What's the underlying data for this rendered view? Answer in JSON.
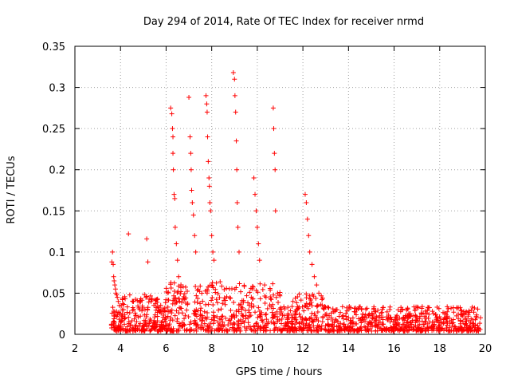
{
  "chart_data": {
    "type": "scatter",
    "title": "Day 294 of 2014, Rate Of TEC Index for receiver nrmd",
    "xlabel": "GPS time / hours",
    "ylabel": "ROTI / TECUs",
    "xlim": [
      2,
      20
    ],
    "ylim": [
      0,
      0.35
    ],
    "xticks": [
      "2",
      "4",
      "6",
      "8",
      "10",
      "12",
      "14",
      "16",
      "18",
      "20"
    ],
    "yticks": [
      "0",
      "0.05",
      "0.1",
      "0.15",
      "0.2",
      "0.25",
      "0.3",
      "0.35"
    ],
    "grid": true,
    "marker": "plus",
    "color": "#ff0000",
    "series": [
      {
        "x": [
          3.62,
          3.65,
          3.68,
          3.7,
          3.72,
          3.75,
          3.78,
          3.8,
          3.83,
          3.86,
          3.9,
          3.95,
          4.35,
          5.15,
          5.2,
          6.2,
          6.25,
          6.28,
          6.3,
          6.3,
          6.32,
          6.35,
          6.38,
          6.4,
          6.45,
          6.5,
          6.55,
          7.0,
          7.05,
          7.08,
          7.1,
          7.12,
          7.15,
          7.2,
          7.25,
          7.3,
          7.75,
          7.78,
          7.8,
          7.82,
          7.85,
          7.88,
          7.9,
          7.92,
          7.95,
          8.0,
          8.05,
          8.1,
          8.95,
          9.0,
          9.02,
          9.05,
          9.08,
          9.1,
          9.12,
          9.15,
          9.2,
          9.85,
          9.9,
          9.95,
          10.0,
          10.05,
          10.1,
          10.7,
          10.72,
          10.75,
          10.78,
          10.8,
          12.1,
          12.15,
          12.2,
          12.25,
          12.3,
          12.4,
          12.5,
          12.6,
          12.7
        ],
        "y": [
          0.088,
          0.1,
          0.085,
          0.07,
          0.065,
          0.06,
          0.055,
          0.05,
          0.048,
          0.045,
          0.04,
          0.035,
          0.122,
          0.116,
          0.088,
          0.275,
          0.268,
          0.25,
          0.24,
          0.22,
          0.2,
          0.17,
          0.165,
          0.13,
          0.11,
          0.09,
          0.07,
          0.288,
          0.24,
          0.22,
          0.2,
          0.175,
          0.16,
          0.145,
          0.12,
          0.1,
          0.29,
          0.28,
          0.27,
          0.24,
          0.21,
          0.19,
          0.18,
          0.16,
          0.15,
          0.12,
          0.1,
          0.09,
          0.318,
          0.31,
          0.29,
          0.27,
          0.235,
          0.2,
          0.16,
          0.13,
          0.1,
          0.19,
          0.17,
          0.15,
          0.13,
          0.11,
          0.09,
          0.275,
          0.25,
          0.22,
          0.2,
          0.15,
          0.17,
          0.16,
          0.14,
          0.12,
          0.1,
          0.085,
          0.07,
          0.06,
          0.05
        ]
      }
    ]
  }
}
